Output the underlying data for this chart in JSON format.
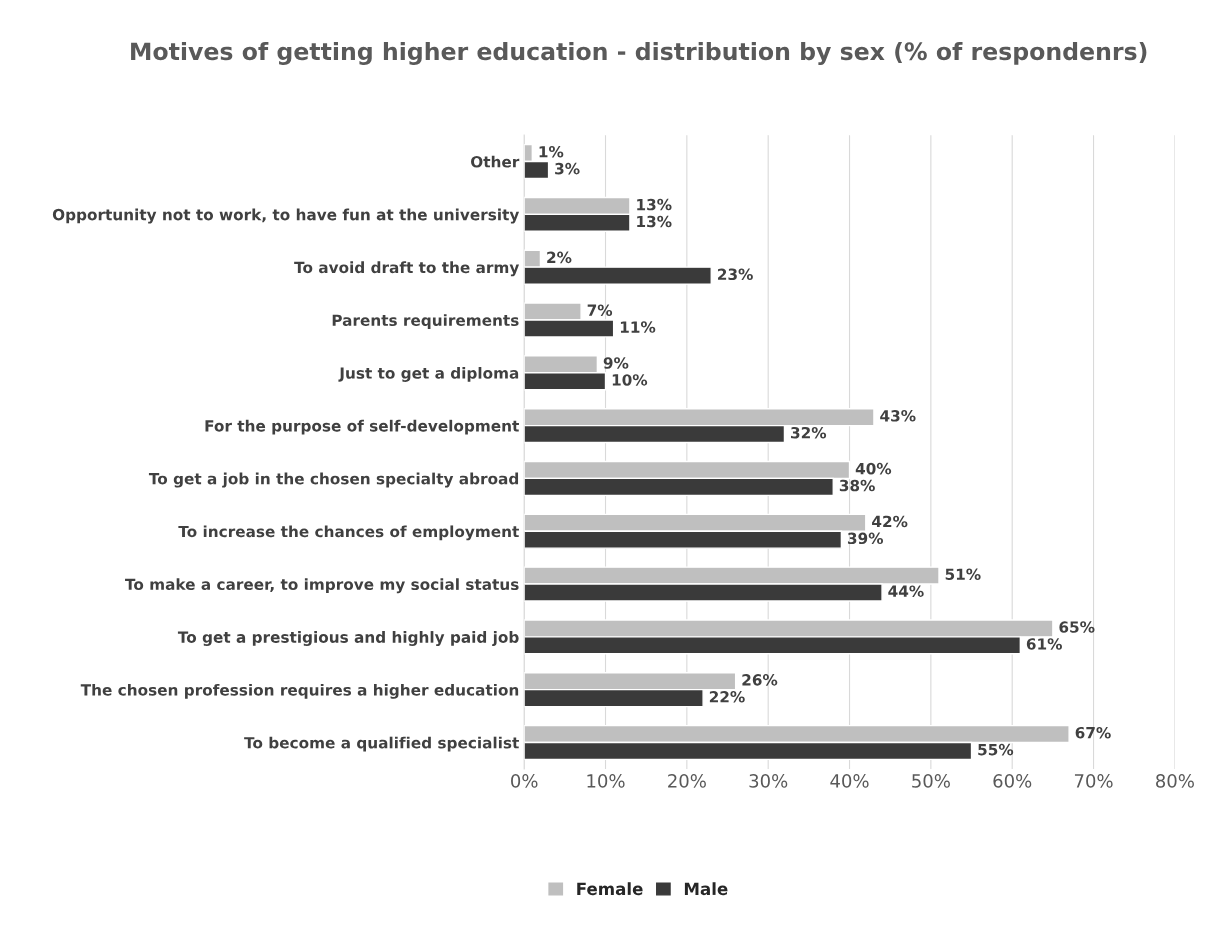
{
  "chart_data": {
    "type": "bar",
    "orientation": "horizontal",
    "title": "Motives of getting higher education - distribution by sex (% of respondenrs)",
    "categories": [
      "Other",
      "Opportunity not to work, to have fun at the university",
      "To avoid draft to the army",
      "Parents requirements",
      "Just to get a diploma",
      "For the purpose of self-development",
      "To get a job in the chosen specialty abroad",
      "To increase the chances of employment",
      "To make a career, to improve my social status",
      "To get a prestigious and highly paid job",
      "The chosen profession requires a higher education",
      "To become a qualified specialist"
    ],
    "series": [
      {
        "name": "Female",
        "color": "#bfbfbf",
        "values": [
          1,
          13,
          2,
          7,
          9,
          43,
          40,
          42,
          51,
          65,
          26,
          67
        ],
        "value_labels": [
          "1%",
          "13%",
          "2%",
          "7%",
          "9%",
          "43%",
          "40%",
          "42%",
          "51%",
          "65%",
          "26%",
          "67%"
        ]
      },
      {
        "name": "Male",
        "color": "#3a3a3a",
        "values": [
          3,
          13,
          23,
          11,
          10,
          32,
          38,
          39,
          44,
          61,
          22,
          55
        ],
        "value_labels": [
          "3%",
          "13%",
          "23%",
          "11%",
          "10%",
          "32%",
          "38%",
          "39%",
          "44%",
          "61%",
          "22%",
          "55%"
        ]
      }
    ],
    "xlim": [
      0,
      80
    ],
    "xticks": [
      {
        "value": 0,
        "label": "0%"
      },
      {
        "value": 10,
        "label": "10%"
      },
      {
        "value": 20,
        "label": "20%"
      },
      {
        "value": 30,
        "label": "30%"
      },
      {
        "value": 40,
        "label": "40%"
      },
      {
        "value": 50,
        "label": "50%"
      },
      {
        "value": 60,
        "label": "60%"
      },
      {
        "value": 70,
        "label": "70%"
      },
      {
        "value": 80,
        "label": "80%"
      }
    ],
    "grid": "x",
    "legend": "bottom"
  }
}
